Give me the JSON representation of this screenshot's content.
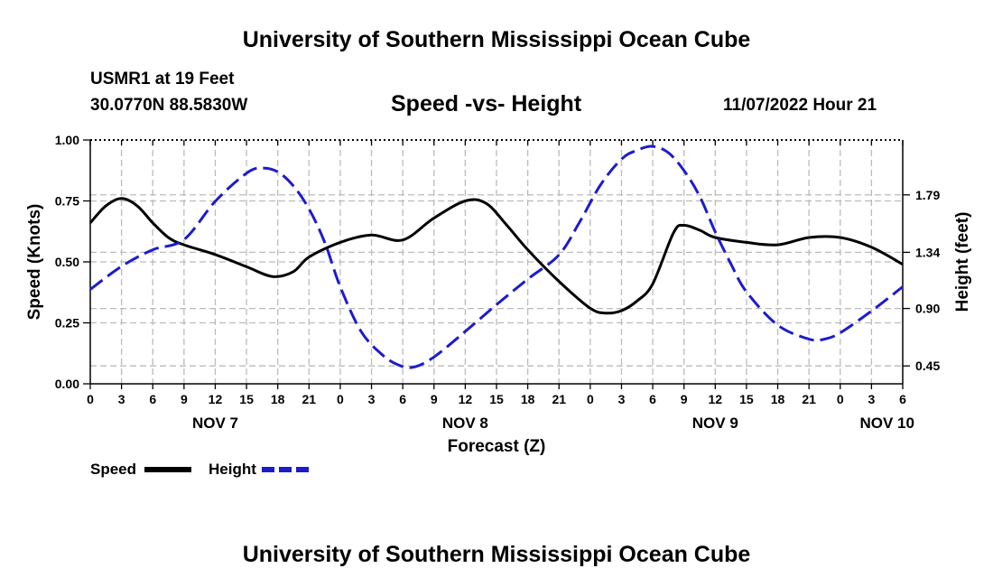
{
  "page": {
    "title_top": "University of Southern Mississippi Ocean Cube",
    "title_bottom": "University of Southern Mississippi Ocean Cube",
    "station": "USMR1 at 19 Feet",
    "coords": "30.0770N  88.5830W",
    "datetime": "11/07/2022 Hour 21"
  },
  "colors": {
    "speed": "#000000",
    "height": "#1c1ccc",
    "grid": "#bbbbbb"
  },
  "chart_data": {
    "type": "line",
    "title": "Speed -vs- Height",
    "xlabel": "Forecast (Z)",
    "ylabel": "Speed (Knots)",
    "y2label": "Height (feet)",
    "x_range_hours": [
      0,
      78
    ],
    "x_tick_labels": [
      "0",
      "3",
      "6",
      "9",
      "12",
      "15",
      "18",
      "21",
      "0",
      "3",
      "6",
      "9",
      "12",
      "15",
      "18",
      "21",
      "0",
      "3",
      "6",
      "9",
      "12",
      "15",
      "18",
      "21",
      "0",
      "3",
      "6"
    ],
    "day_labels": [
      {
        "label": "NOV 7",
        "hour": 12
      },
      {
        "label": "NOV 8",
        "hour": 36
      },
      {
        "label": "NOV 9",
        "hour": 60
      },
      {
        "label": "NOV 10",
        "hour": 76.5
      }
    ],
    "ylim": [
      0,
      1.0
    ],
    "y_ticks": [
      "0.00",
      "0.25",
      "0.50",
      "0.75",
      "1.00"
    ],
    "y2lim": [
      0.31,
      2.22
    ],
    "y2_ticks": [
      "0.45",
      "0.90",
      "1.34",
      "1.79"
    ],
    "legend": [
      {
        "name": "Speed",
        "style": "solid"
      },
      {
        "name": "Height",
        "style": "dashed"
      }
    ],
    "series": [
      {
        "name": "Speed",
        "axis": "left",
        "style": "solid",
        "x": [
          0,
          1.5,
          3,
          4.5,
          6,
          7.5,
          9,
          12,
          15,
          17.5,
          19.5,
          21,
          24,
          27,
          30,
          33,
          36,
          38,
          40,
          42,
          45,
          48,
          49.5,
          51,
          52.5,
          54,
          56,
          57,
          58.5,
          60,
          63,
          66,
          69,
          72,
          75,
          78
        ],
        "values": [
          0.66,
          0.73,
          0.76,
          0.73,
          0.66,
          0.6,
          0.57,
          0.53,
          0.48,
          0.44,
          0.46,
          0.52,
          0.58,
          0.61,
          0.59,
          0.68,
          0.75,
          0.74,
          0.65,
          0.55,
          0.42,
          0.31,
          0.29,
          0.3,
          0.34,
          0.41,
          0.62,
          0.65,
          0.63,
          0.6,
          0.58,
          0.57,
          0.6,
          0.6,
          0.56,
          0.49
        ]
      },
      {
        "name": "Height",
        "axis": "right",
        "style": "dashed",
        "x": [
          0,
          3,
          6,
          9,
          12,
          15,
          16.5,
          18,
          19.5,
          21,
          22.5,
          24,
          26,
          28,
          29.5,
          31,
          33,
          36,
          39,
          42,
          45,
          47,
          49,
          51,
          52.5,
          54,
          55.5,
          57,
          58.5,
          60,
          61.5,
          63,
          66,
          69,
          70.5,
          72,
          75,
          78
        ],
        "values": [
          1.05,
          1.23,
          1.36,
          1.44,
          1.74,
          1.96,
          2.0,
          1.97,
          1.86,
          1.68,
          1.42,
          1.07,
          0.72,
          0.54,
          0.46,
          0.44,
          0.52,
          0.72,
          0.93,
          1.13,
          1.32,
          1.58,
          1.87,
          2.07,
          2.14,
          2.17,
          2.12,
          1.98,
          1.78,
          1.5,
          1.25,
          1.03,
          0.77,
          0.66,
          0.66,
          0.71,
          0.88,
          1.07
        ]
      }
    ]
  }
}
